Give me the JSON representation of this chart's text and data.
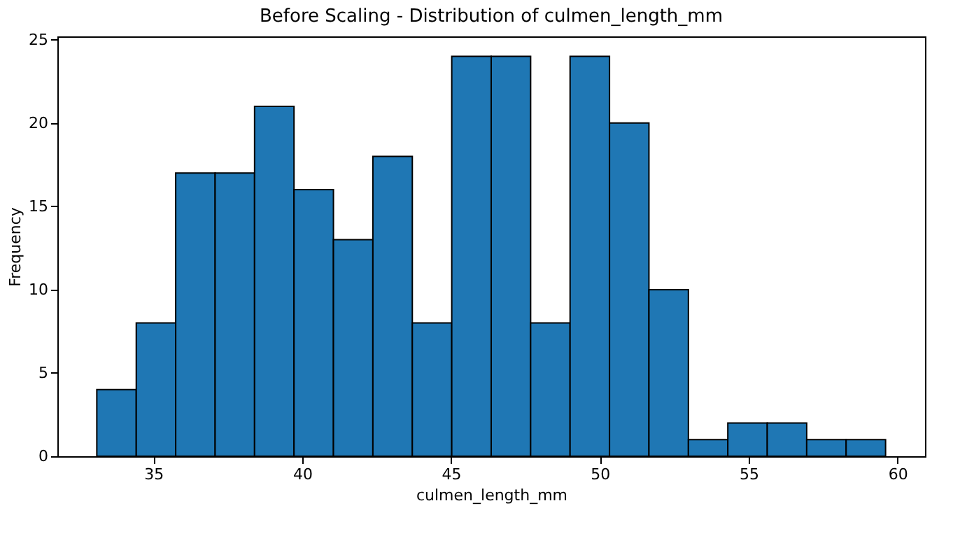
{
  "chart_data": {
    "type": "histogram",
    "title": "Before Scaling - Distribution of culmen_length_mm",
    "xlabel": "culmen_length_mm",
    "ylabel": "Frequency",
    "bins": [
      33.1,
      34.425,
      35.75,
      37.075,
      38.4,
      39.725,
      41.05,
      42.375,
      43.7,
      45.025,
      46.35,
      47.675,
      49.0,
      50.325,
      51.65,
      52.975,
      54.3,
      55.625,
      56.95,
      58.275,
      59.6
    ],
    "values": [
      4,
      8,
      17,
      17,
      21,
      16,
      13,
      18,
      8,
      24,
      24,
      8,
      24,
      20,
      10,
      1,
      2,
      2,
      1,
      1
    ],
    "color": "#1f77b4",
    "xlim": [
      31.775,
      60.925
    ],
    "ylim": [
      0,
      25.2
    ],
    "xticks": [
      35,
      40,
      45,
      50,
      55,
      60
    ],
    "yticks": [
      0,
      5,
      10,
      15,
      20,
      25
    ],
    "grid": false
  }
}
